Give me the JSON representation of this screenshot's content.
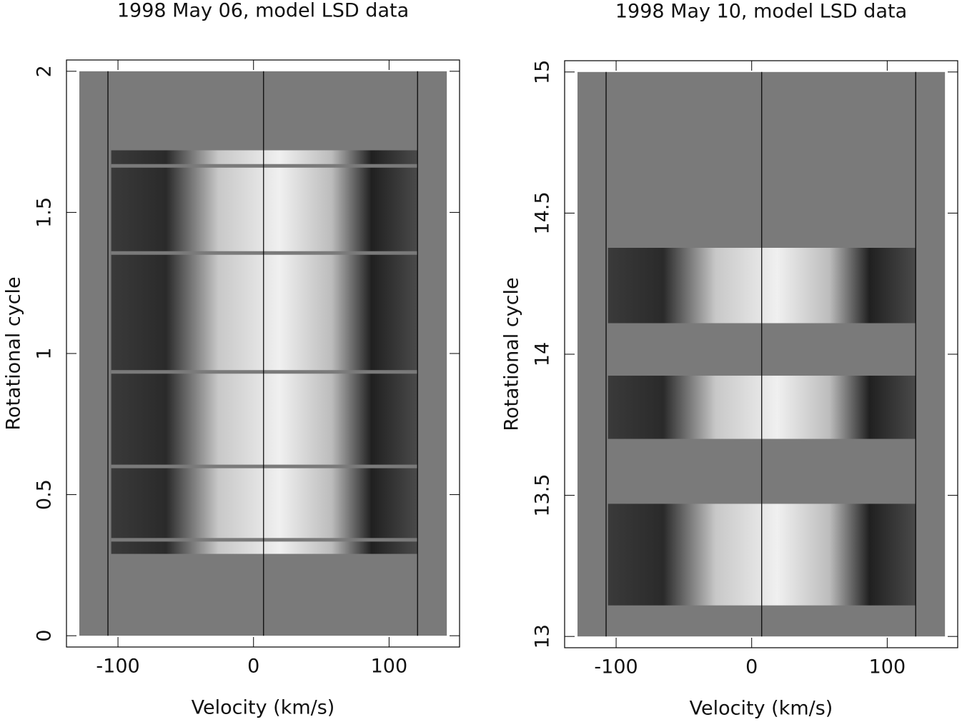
{
  "chart_data": [
    {
      "type": "dynamic-spectrum",
      "title": "1998 May 06, model LSD data",
      "xlabel": "Velocity (km/s)",
      "ylabel": "Rotational cycle",
      "xlim": [
        -138,
        152
      ],
      "ylim": [
        -0.04,
        2.04
      ],
      "xticks": [
        -100,
        0,
        100
      ],
      "yticks": [
        0,
        0.5,
        1,
        1.5,
        2
      ],
      "background": {
        "x": [
          -128.5,
          142.6
        ],
        "y": [
          0,
          2
        ],
        "color": "#7a7a7a"
      },
      "vlines": [
        -107.4,
        7.4,
        121
      ],
      "bands": [
        {
          "x": [
            -105,
            121
          ],
          "y": [
            0.29,
            1.72
          ]
        }
      ],
      "gaps": [
        0.34,
        0.6,
        0.935,
        1.356,
        1.665
      ]
    },
    {
      "type": "dynamic-spectrum",
      "title": "1998 May 10, model LSD data",
      "xlabel": "Velocity (km/s)",
      "ylabel": "Rotational cycle",
      "xlim": [
        -138,
        152
      ],
      "ylim": [
        12.96,
        15.04
      ],
      "xticks": [
        -100,
        0,
        100
      ],
      "yticks": [
        13,
        13.5,
        14,
        14.5,
        15
      ],
      "background": {
        "x": [
          -128.5,
          142.6
        ],
        "y": [
          13,
          15
        ],
        "color": "#7a7a7a"
      },
      "vlines": [
        -107.4,
        7.4,
        121
      ],
      "bands": [
        {
          "x": [
            -106,
            121
          ],
          "y": [
            13.11,
            13.47
          ]
        },
        {
          "x": [
            -106,
            121
          ],
          "y": [
            13.7,
            13.924
          ]
        },
        {
          "x": [
            -106,
            121
          ],
          "y": [
            14.11,
            14.377
          ]
        }
      ],
      "gaps": []
    }
  ]
}
